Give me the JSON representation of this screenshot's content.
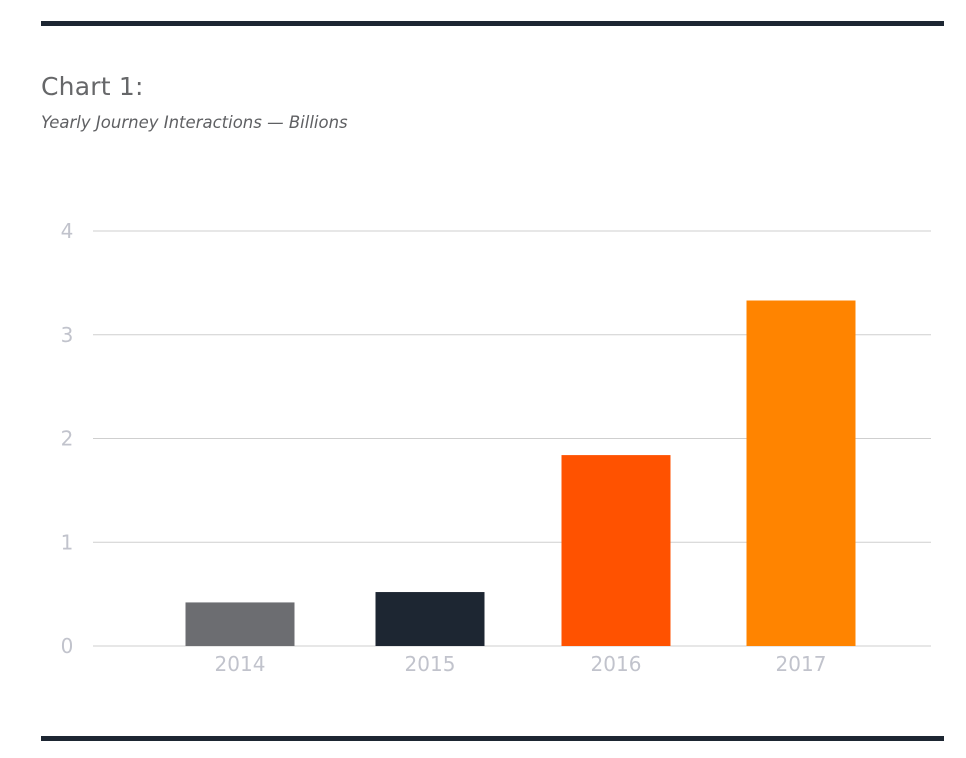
{
  "title": "Chart 1:",
  "subtitle": "Yearly Journey Interactions — Billions",
  "colors": {
    "rule": "#1d2632",
    "grid": "#cfcfcf",
    "axis_label": "#c1c3cc"
  },
  "chart_data": {
    "type": "bar",
    "categories": [
      "2014",
      "2015",
      "2016",
      "2017"
    ],
    "values": [
      0.42,
      0.52,
      1.84,
      3.33
    ],
    "bar_colors": [
      "#6c6d71",
      "#1d2632",
      "#ff5200",
      "#ff8400"
    ],
    "ylim": [
      0,
      4
    ],
    "yticks": [
      0,
      1,
      2,
      3,
      4
    ],
    "ytick_labels": [
      "0",
      "1",
      "2",
      "3",
      "4"
    ],
    "xlabel": "",
    "ylabel": "",
    "grid": true,
    "legend": "none"
  }
}
